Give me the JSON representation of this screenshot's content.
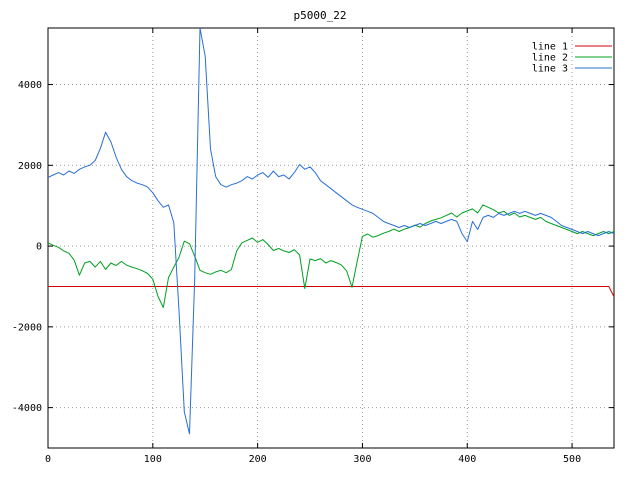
{
  "chart_data": {
    "type": "line",
    "title": "p5000_22",
    "xlabel": "",
    "ylabel": "",
    "xlim": [
      0,
      540
    ],
    "ylim": [
      -5000,
      5400
    ],
    "xticks": [
      0,
      100,
      200,
      300,
      400,
      500
    ],
    "yticks": [
      -4000,
      -2000,
      0,
      2000,
      4000
    ],
    "grid": "dotted",
    "legend_position": "top-right-inside",
    "x": [
      0,
      5,
      10,
      15,
      20,
      25,
      30,
      35,
      40,
      45,
      50,
      55,
      60,
      65,
      70,
      75,
      80,
      85,
      90,
      95,
      100,
      105,
      110,
      115,
      120,
      125,
      130,
      135,
      140,
      145,
      150,
      155,
      160,
      165,
      170,
      175,
      180,
      185,
      190,
      195,
      200,
      205,
      210,
      215,
      220,
      225,
      230,
      235,
      240,
      245,
      250,
      255,
      260,
      265,
      270,
      275,
      280,
      285,
      290,
      295,
      300,
      305,
      310,
      315,
      320,
      325,
      330,
      335,
      340,
      345,
      350,
      355,
      360,
      365,
      370,
      375,
      380,
      385,
      390,
      395,
      400,
      405,
      410,
      415,
      420,
      425,
      430,
      435,
      440,
      445,
      450,
      455,
      460,
      465,
      470,
      475,
      480,
      485,
      490,
      495,
      500,
      505,
      510,
      515,
      520,
      525,
      530,
      535,
      540
    ],
    "series": [
      {
        "name": "line 1",
        "color": "#d40000",
        "x": [
          0,
          300,
          530,
          535,
          540
        ],
        "values": [
          -1000,
          -1000,
          -1000,
          -1000,
          -1250
        ]
      },
      {
        "name": "line 2",
        "color": "#00a020",
        "values": [
          80,
          20,
          -30,
          -120,
          -180,
          -350,
          -720,
          -420,
          -380,
          -520,
          -380,
          -580,
          -420,
          -480,
          -380,
          -470,
          -520,
          -560,
          -610,
          -680,
          -820,
          -1250,
          -1520,
          -780,
          -520,
          -280,
          120,
          60,
          -250,
          -600,
          -660,
          -700,
          -640,
          -600,
          -660,
          -580,
          -120,
          80,
          140,
          200,
          90,
          160,
          40,
          -110,
          -60,
          -120,
          -160,
          -90,
          -220,
          -1050,
          -320,
          -360,
          -310,
          -420,
          -360,
          -410,
          -470,
          -620,
          -1020,
          -380,
          240,
          300,
          220,
          260,
          320,
          360,
          420,
          360,
          420,
          460,
          520,
          470,
          560,
          620,
          660,
          700,
          760,
          820,
          720,
          820,
          870,
          920,
          820,
          1020,
          960,
          900,
          820,
          860,
          760,
          820,
          720,
          760,
          710,
          660,
          710,
          610,
          560,
          510,
          460,
          410,
          360,
          310,
          360,
          310,
          260,
          310,
          360,
          310,
          360
        ]
      },
      {
        "name": "line 3",
        "color": "#2a6fd6",
        "values": [
          1700,
          1760,
          1820,
          1760,
          1860,
          1800,
          1900,
          1960,
          2000,
          2120,
          2420,
          2820,
          2580,
          2200,
          1900,
          1720,
          1620,
          1560,
          1520,
          1460,
          1320,
          1120,
          960,
          1020,
          580,
          -1600,
          -4100,
          -4650,
          -800,
          5400,
          4700,
          2400,
          1720,
          1520,
          1460,
          1520,
          1560,
          1620,
          1720,
          1660,
          1760,
          1820,
          1700,
          1860,
          1720,
          1760,
          1660,
          1820,
          2020,
          1900,
          1960,
          1820,
          1620,
          1520,
          1420,
          1320,
          1220,
          1120,
          1020,
          960,
          910,
          860,
          810,
          710,
          610,
          560,
          510,
          460,
          510,
          460,
          510,
          560,
          510,
          560,
          610,
          560,
          610,
          660,
          610,
          310,
          110,
          610,
          410,
          710,
          760,
          710,
          810,
          760,
          810,
          860,
          810,
          860,
          810,
          760,
          810,
          760,
          710,
          610,
          510,
          460,
          410,
          360,
          310,
          360,
          310,
          260,
          310,
          360,
          310
        ]
      }
    ]
  }
}
